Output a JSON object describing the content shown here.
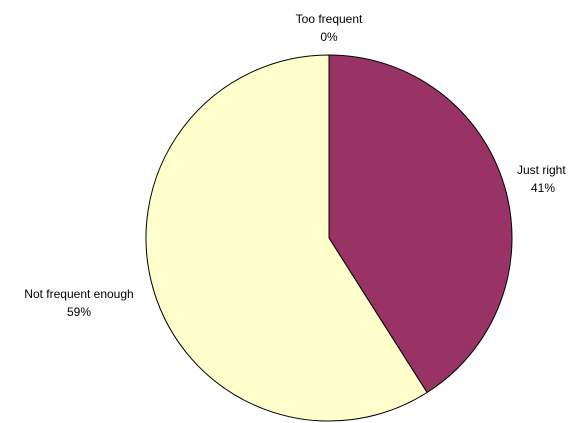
{
  "chart_data": {
    "type": "pie",
    "title": "",
    "slices": [
      {
        "label": "Too frequent",
        "value": 0,
        "percent_label": "0%",
        "color": "#FFFFFF"
      },
      {
        "label": "Just right",
        "value": 41,
        "percent_label": "41%",
        "color": "#993366"
      },
      {
        "label": "Not frequent enough",
        "value": 59,
        "percent_label": "59%",
        "color": "#FFFFCC"
      }
    ],
    "start_angle_deg": 0,
    "direction": "clockwise",
    "legend": "none"
  }
}
